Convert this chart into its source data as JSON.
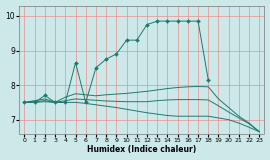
{
  "title": "",
  "xlabel": "Humidex (Indice chaleur)",
  "bg_color": "#cce8e8",
  "line_color": "#1e7a6e",
  "grid_color_h": "#e89090",
  "grid_color_v": "#e89090",
  "xlim": [
    -0.5,
    23.5
  ],
  "ylim": [
    6.6,
    10.3
  ],
  "yticks": [
    7,
    8,
    9,
    10
  ],
  "xticks": [
    0,
    1,
    2,
    3,
    4,
    5,
    6,
    7,
    8,
    9,
    10,
    11,
    12,
    13,
    14,
    15,
    16,
    17,
    18,
    19,
    20,
    21,
    22,
    23
  ],
  "series": [
    {
      "x": [
        0,
        1,
        2,
        3,
        4,
        5,
        6,
        7,
        8,
        9,
        10,
        11,
        12,
        13,
        14,
        15,
        16,
        17,
        18
      ],
      "y": [
        7.5,
        7.5,
        7.7,
        7.5,
        7.5,
        8.65,
        7.5,
        8.5,
        8.75,
        8.9,
        9.3,
        9.3,
        9.75,
        9.85,
        9.85,
        9.85,
        9.85,
        9.85,
        8.15
      ],
      "has_markers": true
    },
    {
      "x": [
        0,
        1,
        2,
        3,
        4,
        5,
        6,
        7,
        8,
        9,
        10,
        11,
        12,
        13,
        14,
        15,
        16,
        17,
        18,
        19,
        20,
        21,
        22,
        23
      ],
      "y": [
        7.5,
        7.55,
        7.6,
        7.5,
        7.65,
        7.75,
        7.72,
        7.69,
        7.72,
        7.74,
        7.76,
        7.79,
        7.82,
        7.86,
        7.9,
        7.93,
        7.95,
        7.96,
        7.95,
        7.6,
        7.35,
        7.1,
        6.9,
        6.65
      ],
      "has_markers": false
    },
    {
      "x": [
        0,
        1,
        2,
        3,
        4,
        5,
        6,
        7,
        8,
        9,
        10,
        11,
        12,
        13,
        14,
        15,
        16,
        17,
        18,
        19,
        20,
        21,
        22,
        23
      ],
      "y": [
        7.5,
        7.52,
        7.55,
        7.5,
        7.55,
        7.6,
        7.58,
        7.56,
        7.54,
        7.53,
        7.52,
        7.52,
        7.52,
        7.55,
        7.57,
        7.58,
        7.58,
        7.58,
        7.57,
        7.4,
        7.22,
        7.05,
        6.88,
        6.65
      ],
      "has_markers": false
    },
    {
      "x": [
        0,
        1,
        2,
        3,
        4,
        5,
        6,
        7,
        8,
        9,
        10,
        11,
        12,
        13,
        14,
        15,
        16,
        17,
        18,
        19,
        20,
        21,
        22,
        23
      ],
      "y": [
        7.5,
        7.5,
        7.52,
        7.5,
        7.5,
        7.5,
        7.47,
        7.43,
        7.39,
        7.35,
        7.3,
        7.25,
        7.2,
        7.16,
        7.12,
        7.1,
        7.1,
        7.1,
        7.1,
        7.05,
        7.0,
        6.9,
        6.78,
        6.65
      ],
      "has_markers": false
    }
  ]
}
